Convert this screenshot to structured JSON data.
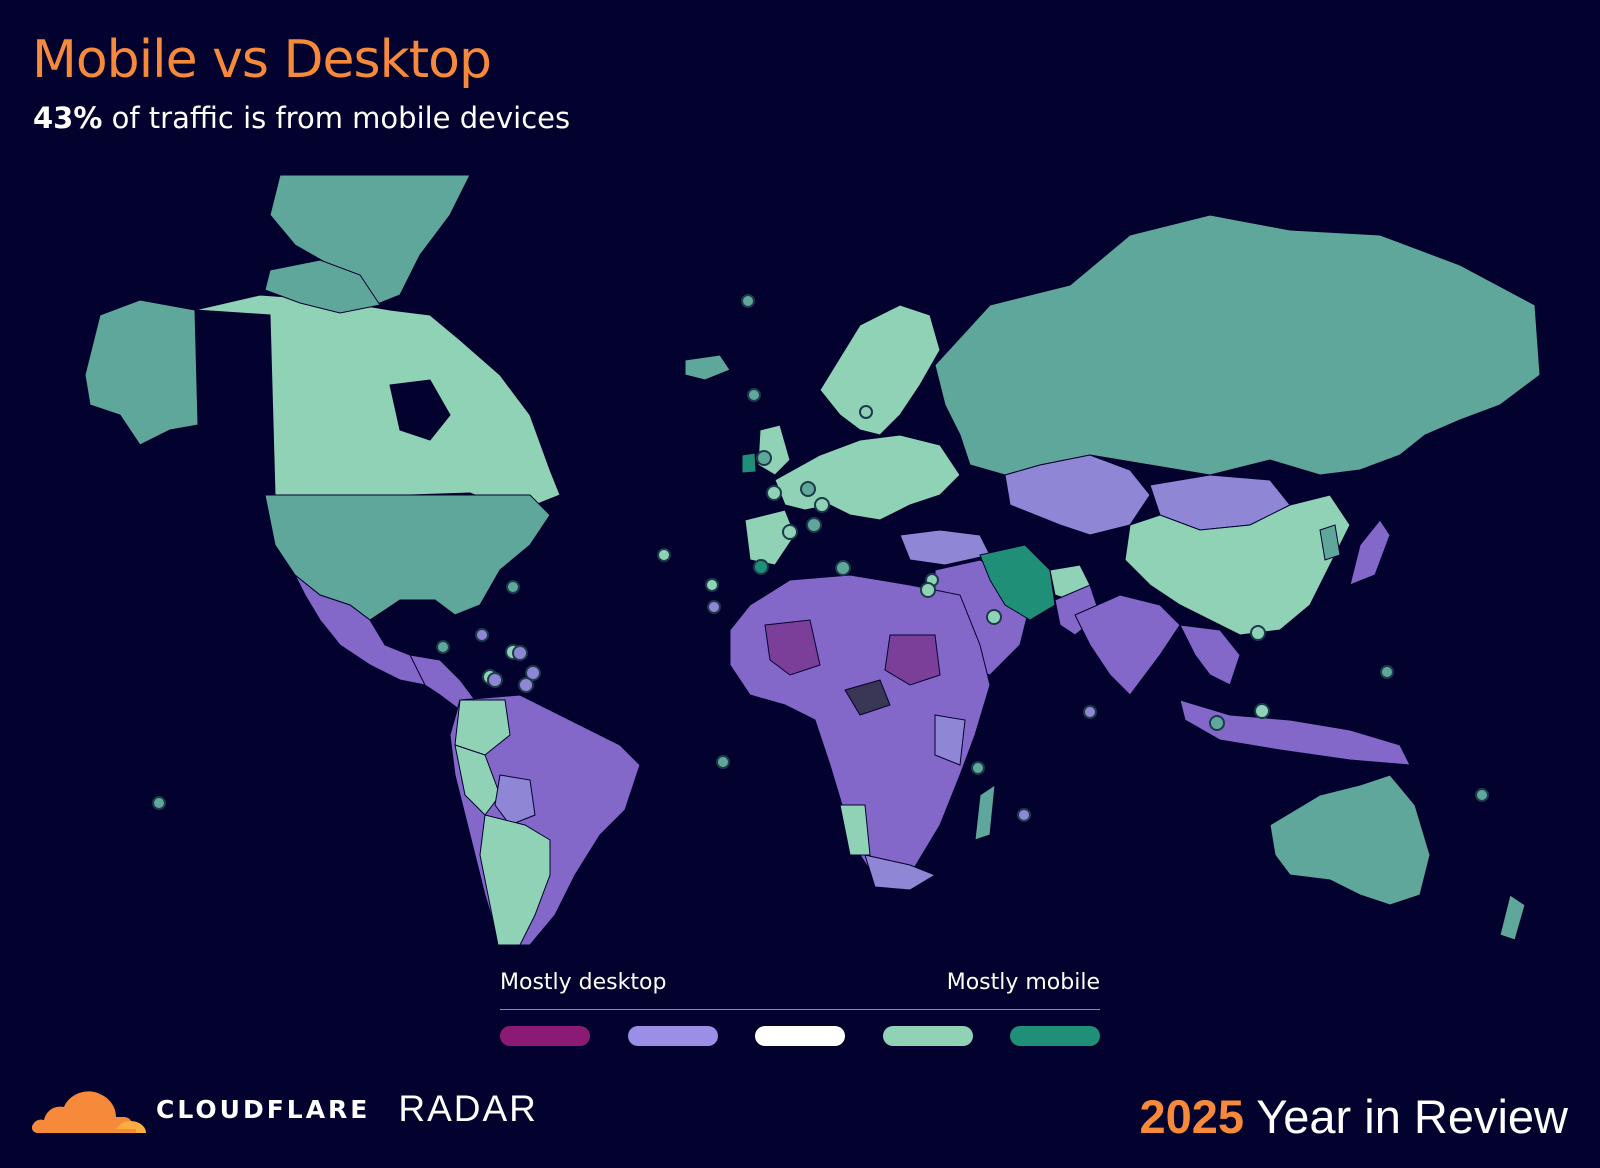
{
  "header": {
    "title": "Mobile vs Desktop",
    "subtitle_pct": "43%",
    "subtitle_rest": " of traffic is from mobile devices"
  },
  "legend": {
    "left_label": "Mostly desktop",
    "right_label": "Mostly mobile",
    "colors": [
      "#8b1a74",
      "#9a8ee6",
      "#ffffff",
      "#8fd2b6",
      "#1f8f78"
    ]
  },
  "footer": {
    "brand": "CLOUDFLARE",
    "product": "RADAR",
    "year": "2025",
    "tagline": " Year in Review"
  },
  "map_colors": {
    "mobile_strong": "#1f8f78",
    "mobile": "#5ea79a",
    "mobile_light": "#8fd2b6",
    "desktop_light": "#8f86d6",
    "desktop": "#8367c9",
    "desktop_strong": "#7b3f9a",
    "no_data": "#3a3656"
  }
}
